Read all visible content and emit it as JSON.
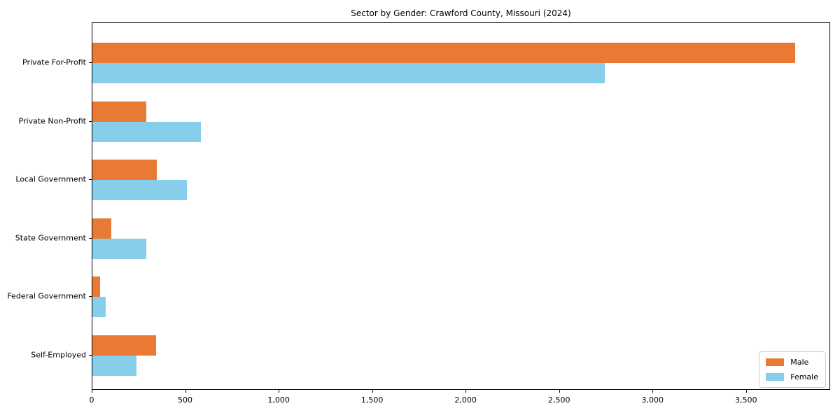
{
  "chart_data": {
    "type": "bar",
    "orientation": "horizontal",
    "title": "Sector by Gender: Crawford County, Missouri (2024)",
    "categories": [
      "Private For-Profit",
      "Private Non-Profit",
      "Local Government",
      "State Government",
      "Federal Government",
      "Self-Employed"
    ],
    "series": [
      {
        "name": "Male",
        "color": "#e87a33",
        "values": [
          3760,
          290,
          345,
          100,
          40,
          340
        ]
      },
      {
        "name": "Female",
        "color": "#87ceeb",
        "values": [
          2740,
          580,
          505,
          290,
          72,
          235
        ]
      }
    ],
    "xlabel": "",
    "ylabel": "",
    "xlim": [
      0,
      3950
    ],
    "xticks": [
      0,
      500,
      1000,
      1500,
      2000,
      2500,
      3000,
      3500
    ],
    "xtick_labels": [
      "0",
      "500",
      "1,000",
      "1,500",
      "2,000",
      "2,500",
      "3,000",
      "3,500"
    ],
    "grid": false,
    "legend_position": "lower right"
  }
}
